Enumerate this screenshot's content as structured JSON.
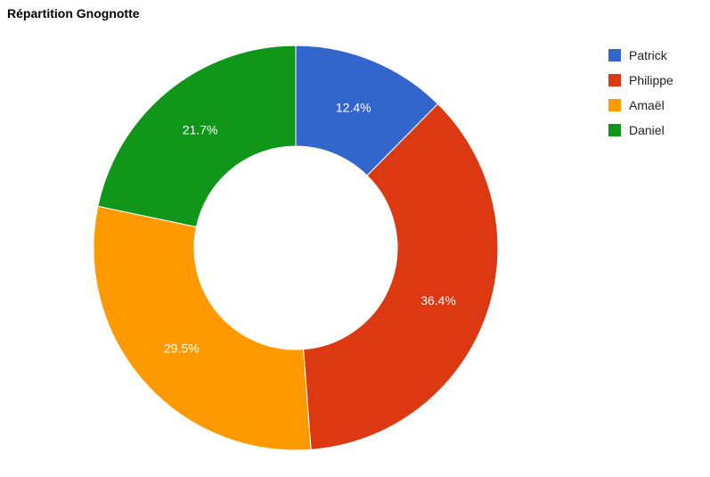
{
  "chart_data": {
    "type": "pie",
    "title": "Répartition Gnognotte",
    "donut": true,
    "legend_position": "right",
    "slices": [
      {
        "name": "Patrick",
        "value": 12.4,
        "label": "12.4%",
        "color": "#3366cc"
      },
      {
        "name": "Philippe",
        "value": 36.4,
        "label": "36.4%",
        "color": "#dc3912"
      },
      {
        "name": "Amaël",
        "value": 29.5,
        "label": "29.5%",
        "color": "#ff9900"
      },
      {
        "name": "Daniel",
        "value": 21.7,
        "label": "21.7%",
        "color": "#109618"
      }
    ]
  }
}
